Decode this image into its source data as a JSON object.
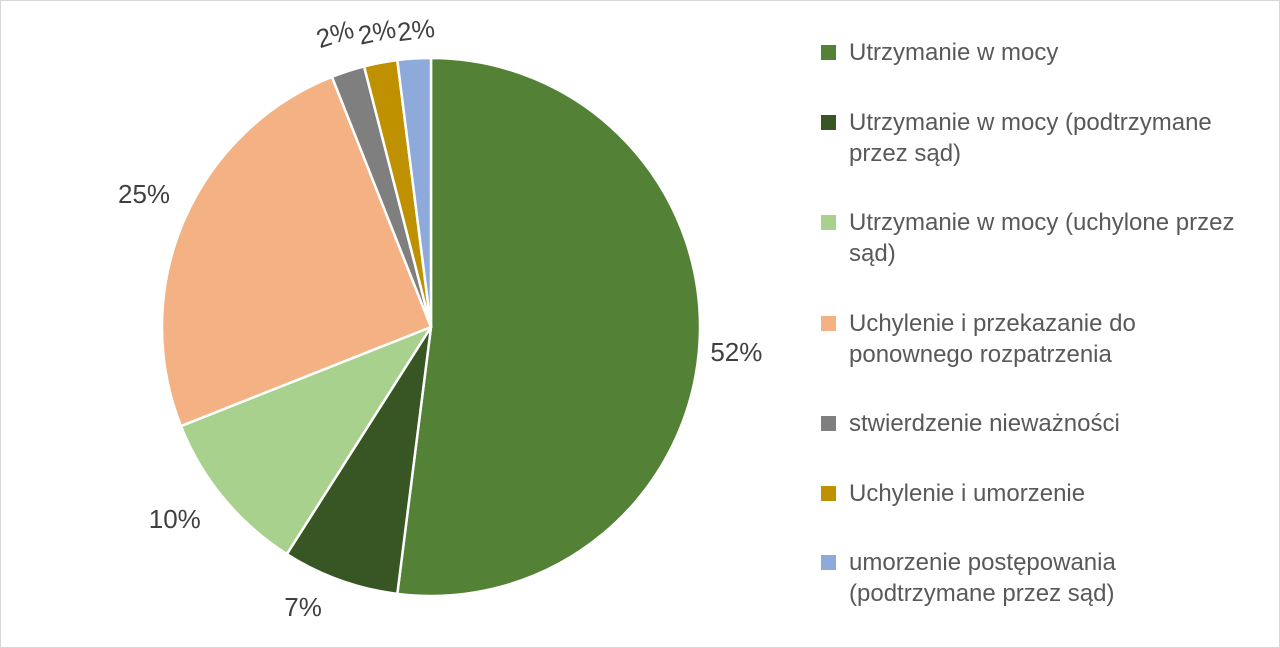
{
  "chart_data": {
    "type": "pie",
    "title": "",
    "legend_position": "right",
    "start_angle_deg": 0,
    "direction": "clockwise",
    "total_percent": 100,
    "series": [
      {
        "label": "Utrzymanie w mocy",
        "value": 52,
        "pct_label": "52%",
        "color": "#538135"
      },
      {
        "label": "Utrzymanie w mocy (podtrzymane przez sąd)",
        "value": 7,
        "pct_label": "7%",
        "color": "#375623"
      },
      {
        "label": "Utrzymanie w mocy (uchylone przez sąd)",
        "value": 10,
        "pct_label": "10%",
        "color": "#a9d18e"
      },
      {
        "label": "Uchylenie i przekazanie do ponownego rozpatrzenia",
        "value": 25,
        "pct_label": "25%",
        "color": "#f4b183"
      },
      {
        "label": "stwierdzenie nieważności",
        "value": 2,
        "pct_label": "2%",
        "color": "#7f7f7f"
      },
      {
        "label": "Uchylenie i umorzenie",
        "value": 2,
        "pct_label": "2%",
        "color": "#bf9000"
      },
      {
        "label": "umorzenie postępowania (podtrzymane przez sąd)",
        "value": 2,
        "pct_label": "2%",
        "color": "#8eaadb"
      }
    ]
  },
  "colors": {
    "background": "#ffffff",
    "canvas_border": "#d6d6d6",
    "slice_separator": "#ffffff",
    "data_label_text": "#404040",
    "legend_text": "#595959"
  }
}
